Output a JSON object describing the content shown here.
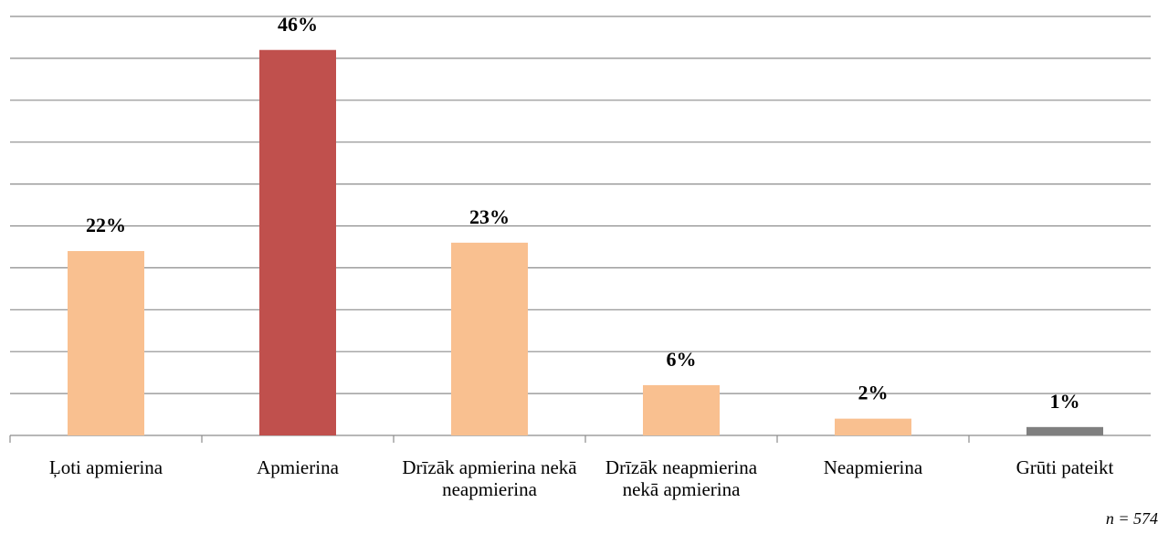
{
  "chart_data": {
    "type": "bar",
    "categories": [
      "Ļoti apmierina",
      "Apmierina",
      "Drīzāk apmierina nekā neapmierina",
      "Drīzāk neapmierina nekā apmierina",
      "Neapmierina",
      "Grūti pateikt"
    ],
    "values": [
      22,
      46,
      23,
      6,
      2,
      1
    ],
    "value_labels": [
      "22%",
      "46%",
      "23%",
      "6%",
      "2%",
      "1%"
    ],
    "colors": [
      "#f9c090",
      "#c0504d",
      "#f9c090",
      "#f9c090",
      "#f9c090",
      "#7f7f7f"
    ],
    "ylim": [
      0,
      50
    ],
    "yticks": [
      0,
      5,
      10,
      15,
      20,
      25,
      30,
      35,
      40,
      45,
      50
    ],
    "grid": true,
    "note": "n = 574"
  }
}
